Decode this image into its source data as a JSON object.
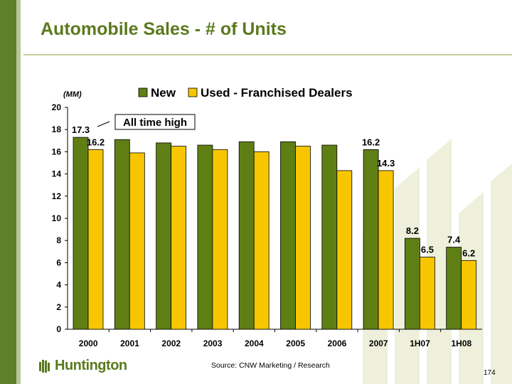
{
  "slide": {
    "title": "Automobile Sales - # of Units",
    "source": "Source: CNW Marketing / Research",
    "page_number": "174",
    "logo_text": "Huntington",
    "colors": {
      "brand_green": "#5a7a1e",
      "new": "#5f7f15",
      "used": "#f7c600"
    }
  },
  "chart_data": {
    "type": "bar",
    "unit_label": "(MM)",
    "categories": [
      "2000",
      "2001",
      "2002",
      "2003",
      "2004",
      "2005",
      "2006",
      "2007",
      "1H07",
      "1H08"
    ],
    "series": [
      {
        "name": "New",
        "color": "#5f7f15",
        "values": [
          17.3,
          17.1,
          16.8,
          16.6,
          16.9,
          16.9,
          16.6,
          16.2,
          8.2,
          7.4
        ]
      },
      {
        "name": "Used - Franchised Dealers",
        "color": "#f7c600",
        "values": [
          16.2,
          15.9,
          16.5,
          16.2,
          16.0,
          16.5,
          14.3,
          14.3,
          6.5,
          6.2
        ]
      }
    ],
    "data_labels": [
      {
        "category": "2000",
        "series": "New",
        "text": "17.3"
      },
      {
        "category": "2000",
        "series": "Used - Franchised Dealers",
        "text": "16.2"
      },
      {
        "category": "2007",
        "series": "New",
        "text": "16.2"
      },
      {
        "category": "2007",
        "series": "Used - Franchised Dealers",
        "text": "14.3"
      },
      {
        "category": "1H07",
        "series": "New",
        "text": "8.2"
      },
      {
        "category": "1H07",
        "series": "Used - Franchised Dealers",
        "text": "6.5"
      },
      {
        "category": "1H08",
        "series": "New",
        "text": "7.4"
      },
      {
        "category": "1H08",
        "series": "Used - Franchised Dealers",
        "text": "6.2"
      }
    ],
    "annotation": "All time high",
    "ylim": [
      0,
      20
    ],
    "yticks": [
      0,
      2,
      4,
      6,
      8,
      10,
      12,
      14,
      16,
      18,
      20
    ],
    "grid": false,
    "legend": "top"
  }
}
